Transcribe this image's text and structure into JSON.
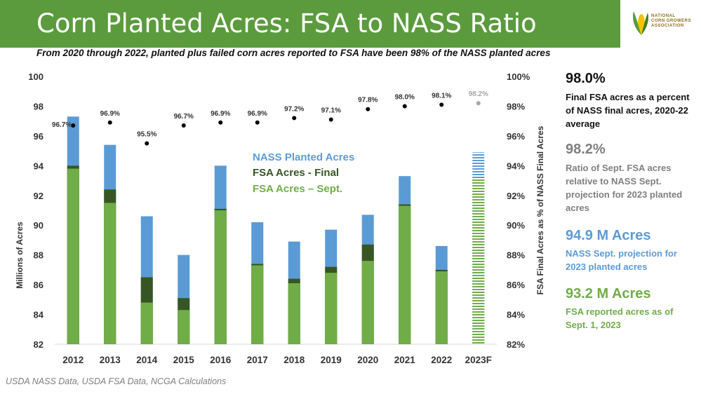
{
  "header": {
    "title": "Corn Planted Acres: FSA to NASS Ratio",
    "logo_text": [
      "NATIONAL",
      "CORN GROWERS",
      "ASSOCIATION"
    ],
    "subtitle": "From 2020 through 2022, planted plus failed corn acres reported to FSA have been 98% of the NASS planted acres"
  },
  "colors": {
    "title_bar": "#5b9b3d",
    "nass": "#5b9bd5",
    "fsa_final": "#375623",
    "fsa_sept": "#70ad47",
    "dot": "#000000",
    "dot_projection": "#a6a6a6"
  },
  "chart_data": {
    "type": "bar",
    "categories": [
      "2012",
      "2013",
      "2014",
      "2015",
      "2016",
      "2017",
      "2018",
      "2019",
      "2020",
      "2021",
      "2022",
      "2023F"
    ],
    "series": [
      {
        "name": "NASS Planted Acres",
        "values": [
          97.3,
          95.4,
          90.6,
          88.0,
          94.0,
          90.2,
          88.9,
          89.7,
          90.7,
          93.3,
          88.6,
          94.9
        ]
      },
      {
        "name": "FSA Acres - Final",
        "values": [
          94.0,
          92.4,
          86.5,
          85.1,
          91.1,
          87.4,
          86.4,
          87.2,
          88.7,
          91.4,
          87.0,
          null
        ]
      },
      {
        "name": "FSA Acres – Sept.",
        "values": [
          93.8,
          91.5,
          84.8,
          84.3,
          91.0,
          87.3,
          86.1,
          86.8,
          87.6,
          91.3,
          86.9,
          93.2
        ]
      }
    ],
    "ratio": {
      "values": [
        96.7,
        96.9,
        95.5,
        96.7,
        96.9,
        96.9,
        97.2,
        97.1,
        97.8,
        98.0,
        98.1,
        98.2
      ],
      "labels": [
        "96.7%",
        "96.9%",
        "95.5%",
        "96.7%",
        "96.9%",
        "96.9%",
        "97.2%",
        "97.1%",
        "97.8%",
        "98.0%",
        "98.1%",
        "98.2%"
      ]
    },
    "ylabel": "Millions of Acres",
    "y2label": "FSA Final Acres as % of NASS Final Acres",
    "ylim": [
      82,
      100
    ],
    "y2lim": [
      82,
      100
    ],
    "yticks": [
      "82",
      "84",
      "86",
      "88",
      "90",
      "92",
      "94",
      "96",
      "98",
      "100"
    ],
    "y2ticks": [
      "82%",
      "84%",
      "86%",
      "88%",
      "90%",
      "92%",
      "94%",
      "96%",
      "98%",
      "100%"
    ],
    "grid": false,
    "legend_position": "center-right"
  },
  "sidebar": [
    {
      "value": "98.0%",
      "text": "Final FSA acres as a percent of NASS final acres, 2020-22 average",
      "color": "#111111"
    },
    {
      "value": "98.2%",
      "text": "Ratio of Sept. FSA acres relative to NASS Sept. projection for 2023 planted acres",
      "color": "#7f7f7f"
    },
    {
      "value": "94.9 M Acres",
      "text": "NASS Sept. projection for 2023 planted acres",
      "color": "#5b9bd5"
    },
    {
      "value": "93.2 M Acres",
      "text": "FSA reported acres as of Sept. 1, 2023",
      "color": "#70ad47"
    }
  ],
  "source": "USDA NASS Data, USDA FSA Data, NCGA Calculations"
}
